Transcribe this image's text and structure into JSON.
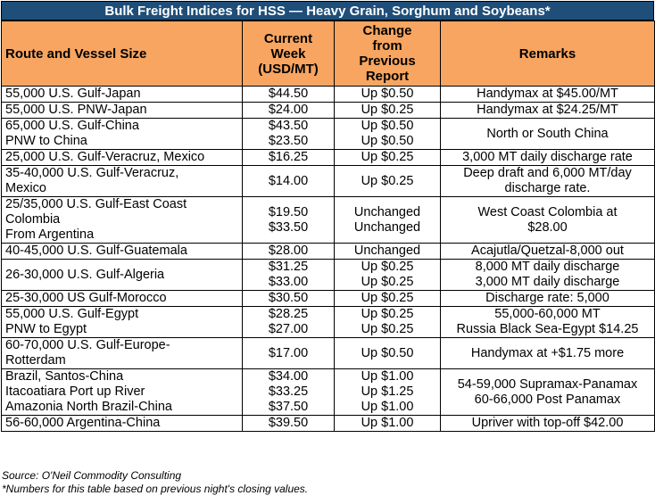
{
  "title": "Bulk Freight Indices for HSS — Heavy Grain, Sorghum and Soybeans*",
  "headers": {
    "route": "Route and Vessel Size",
    "current": [
      "Current",
      "Week",
      "(USD/MT)"
    ],
    "change": [
      "Change",
      "from",
      "Previous",
      "Report"
    ],
    "remarks": "Remarks"
  },
  "rows": [
    {
      "route": [
        "55,000 U.S. Gulf-Japan"
      ],
      "current": [
        "$44.50"
      ],
      "change": [
        "Up $0.50"
      ],
      "remarks": [
        "Handymax at $45.00/MT"
      ]
    },
    {
      "route": [
        "55,000 U.S. PNW-Japan"
      ],
      "current": [
        "$24.00"
      ],
      "change": [
        "Up $0.25"
      ],
      "remarks": [
        "Handymax at $24.25/MT"
      ]
    },
    {
      "route": [
        "65,000 U.S. Gulf-China",
        "PNW to China"
      ],
      "current": [
        "$43.50",
        "$23.50"
      ],
      "change": [
        "Up $0.50",
        "Up $0.50"
      ],
      "remarks": [
        "North or South China"
      ]
    },
    {
      "route": [
        "25,000 U.S. Gulf-Veracruz, Mexico"
      ],
      "current": [
        "$16.25"
      ],
      "change": [
        "Up $0.25"
      ],
      "remarks": [
        "3,000 MT daily discharge rate"
      ]
    },
    {
      "route": [
        "35-40,000 U.S. Gulf-Veracruz,",
        "Mexico"
      ],
      "current": [
        "$14.00"
      ],
      "change": [
        "Up $0.25"
      ],
      "remarks": [
        "Deep draft and 6,000 MT/day",
        "discharge rate."
      ]
    },
    {
      "route": [
        "25/35,000 U.S. Gulf-East Coast",
        "Colombia",
        "From Argentina"
      ],
      "current": [
        "$19.50",
        "$33.50"
      ],
      "change": [
        "Unchanged",
        "Unchanged"
      ],
      "remarks": [
        "West Coast Colombia at",
        "$28.00"
      ]
    },
    {
      "route": [
        "40-45,000 U.S. Gulf-Guatemala"
      ],
      "current": [
        "$28.00"
      ],
      "change": [
        "Unchanged"
      ],
      "remarks": [
        "Acajutla/Quetzal-8,000 out"
      ]
    },
    {
      "route": [
        "26-30,000 U.S. Gulf-Algeria"
      ],
      "current": [
        "$31.25",
        "$33.00"
      ],
      "change": [
        "Up $0.25",
        "Up $0.25"
      ],
      "remarks": [
        "8,000 MT daily discharge",
        "3,000 MT daily discharge"
      ]
    },
    {
      "route": [
        "25-30,000 US Gulf-Morocco"
      ],
      "current": [
        "$30.50"
      ],
      "change": [
        "Up $0.25"
      ],
      "remarks": [
        "Discharge rate: 5,000"
      ]
    },
    {
      "route": [
        "55,000 U.S. Gulf-Egypt",
        "PNW to Egypt"
      ],
      "current": [
        "$28.25",
        "$27.00"
      ],
      "change": [
        "Up $0.25",
        "Up $0.25"
      ],
      "remarks": [
        "55,000-60,000 MT",
        "Russia Black Sea-Egypt $14.25"
      ]
    },
    {
      "route": [
        "60-70,000 U.S. Gulf-Europe-",
        "Rotterdam"
      ],
      "current": [
        "$17.00"
      ],
      "change": [
        "Up $0.50"
      ],
      "remarks": [
        "Handymax at +$1.75 more"
      ]
    },
    {
      "route": [
        "Brazil, Santos-China",
        "Itacoatiara Port up River",
        "Amazonia North Brazil-China"
      ],
      "current": [
        "$34.00",
        "$33.25",
        "$37.50"
      ],
      "change": [
        "Up $1.00",
        "Up $1.25",
        "Up $1.00"
      ],
      "remarks": [
        "54-59,000 Supramax-Panamax",
        "60-66,000 Post Panamax"
      ]
    },
    {
      "route": [
        "56-60,000 Argentina-China"
      ],
      "current": [
        "$39.50"
      ],
      "change": [
        "Up $1.00"
      ],
      "remarks": [
        "Upriver with top-off $42.00"
      ]
    }
  ],
  "source": "Source: O'Neil Commodity Consulting",
  "footnote": "*Numbers for this table based on previous night's closing values."
}
